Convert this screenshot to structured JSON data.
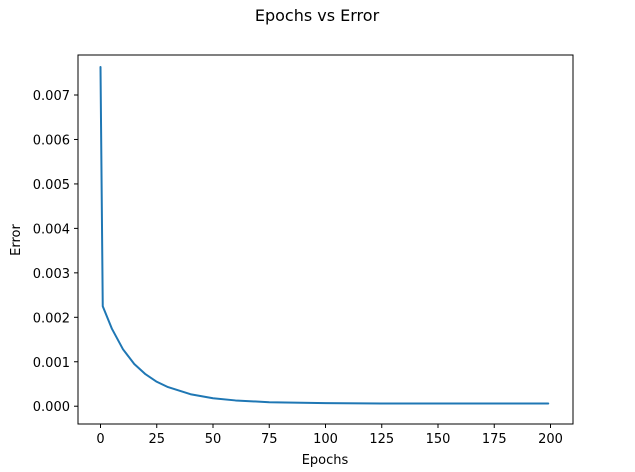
{
  "chart_data": {
    "type": "line",
    "title": "Epochs vs Error",
    "xlabel": "Epochs",
    "ylabel": "Error",
    "xlim": [
      -10,
      210
    ],
    "ylim": [
      -0.0004,
      0.0079
    ],
    "xticks": [
      0,
      25,
      50,
      75,
      100,
      125,
      150,
      175,
      200
    ],
    "yticks": [
      0.0,
      0.001,
      0.002,
      0.003,
      0.004,
      0.005,
      0.006,
      0.007
    ],
    "ytick_labels": [
      "0.000",
      "0.001",
      "0.002",
      "0.003",
      "0.004",
      "0.005",
      "0.006",
      "0.007"
    ],
    "grid": false,
    "legend": "none",
    "series": [
      {
        "color": "#1f77b4",
        "x": [
          0,
          1,
          5,
          10,
          15,
          20,
          25,
          30,
          40,
          50,
          60,
          75,
          100,
          125,
          150,
          175,
          199
        ],
        "y": [
          0.00763,
          0.00225,
          0.00175,
          0.00128,
          0.00095,
          0.00072,
          0.00055,
          0.00043,
          0.00027,
          0.00018,
          0.00013,
          9e-05,
          7e-05,
          6e-05,
          6e-05,
          6e-05,
          6e-05
        ]
      }
    ]
  }
}
